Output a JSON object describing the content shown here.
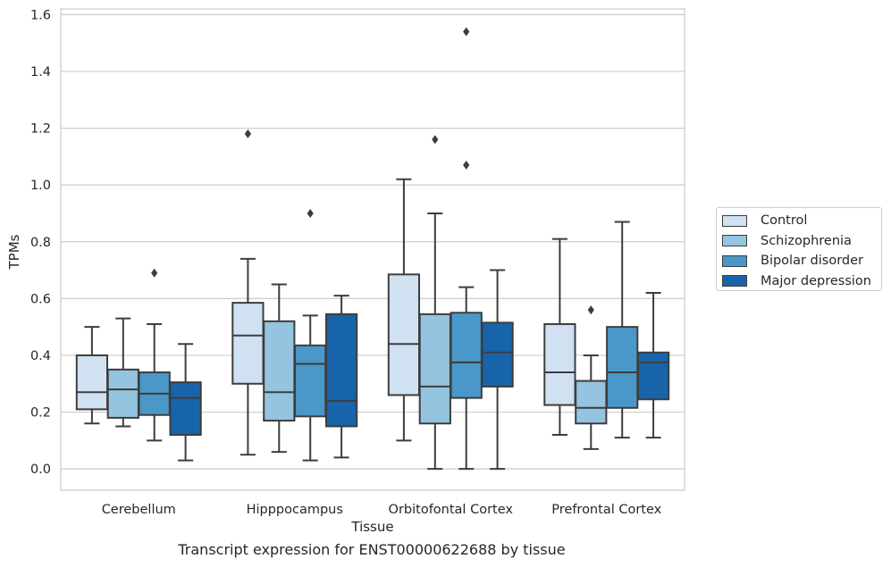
{
  "chart_data": {
    "type": "box",
    "caption": "Transcript expression for ENST00000622688 by tissue",
    "xlabel": "Tissue",
    "ylabel": "TPMs",
    "ylim": [
      -0.075,
      1.62
    ],
    "yticks": [
      "0.0",
      "0.2",
      "0.4",
      "0.6",
      "0.8",
      "1.0",
      "1.2",
      "1.4",
      "1.6"
    ],
    "grid": true,
    "legend_position": "right",
    "categories": [
      "Cerebellum",
      "Hipppocampus",
      "Orbitofontal Cortex",
      "Prefrontal Cortex"
    ],
    "series": [
      {
        "name": "Control",
        "color": "#d0e1f2",
        "boxes": [
          {
            "whislo": 0.16,
            "q1": 0.21,
            "med": 0.27,
            "q3": 0.4,
            "whishi": 0.5,
            "fliers": []
          },
          {
            "whislo": 0.05,
            "q1": 0.3,
            "med": 0.47,
            "q3": 0.585,
            "whishi": 0.74,
            "fliers": [
              1.18
            ]
          },
          {
            "whislo": 0.1,
            "q1": 0.26,
            "med": 0.44,
            "q3": 0.685,
            "whishi": 1.02,
            "fliers": []
          },
          {
            "whislo": 0.12,
            "q1": 0.225,
            "med": 0.34,
            "q3": 0.51,
            "whishi": 0.81,
            "fliers": []
          }
        ]
      },
      {
        "name": "Schizophrenia",
        "color": "#94c4df",
        "boxes": [
          {
            "whislo": 0.15,
            "q1": 0.18,
            "med": 0.28,
            "q3": 0.35,
            "whishi": 0.53,
            "fliers": []
          },
          {
            "whislo": 0.06,
            "q1": 0.17,
            "med": 0.27,
            "q3": 0.52,
            "whishi": 0.65,
            "fliers": []
          },
          {
            "whislo": 0.0,
            "q1": 0.16,
            "med": 0.29,
            "q3": 0.545,
            "whishi": 0.9,
            "fliers": [
              1.16
            ]
          },
          {
            "whislo": 0.07,
            "q1": 0.16,
            "med": 0.215,
            "q3": 0.31,
            "whishi": 0.4,
            "fliers": [
              0.56
            ]
          }
        ]
      },
      {
        "name": "Bipolar disorder",
        "color": "#4a98c9",
        "boxes": [
          {
            "whislo": 0.1,
            "q1": 0.19,
            "med": 0.265,
            "q3": 0.34,
            "whishi": 0.51,
            "fliers": [
              0.69
            ]
          },
          {
            "whislo": 0.03,
            "q1": 0.185,
            "med": 0.37,
            "q3": 0.435,
            "whishi": 0.54,
            "fliers": [
              0.9
            ]
          },
          {
            "whislo": 0.0,
            "q1": 0.25,
            "med": 0.375,
            "q3": 0.55,
            "whishi": 0.64,
            "fliers": [
              1.07,
              1.54
            ]
          },
          {
            "whislo": 0.11,
            "q1": 0.215,
            "med": 0.34,
            "q3": 0.5,
            "whishi": 0.87,
            "fliers": []
          }
        ]
      },
      {
        "name": "Major depression",
        "color": "#1764ab",
        "boxes": [
          {
            "whislo": 0.03,
            "q1": 0.12,
            "med": 0.25,
            "q3": 0.305,
            "whishi": 0.44,
            "fliers": []
          },
          {
            "whislo": 0.04,
            "q1": 0.15,
            "med": 0.24,
            "q3": 0.545,
            "whishi": 0.61,
            "fliers": []
          },
          {
            "whislo": 0.0,
            "q1": 0.29,
            "med": 0.41,
            "q3": 0.515,
            "whishi": 0.7,
            "fliers": []
          },
          {
            "whislo": 0.11,
            "q1": 0.245,
            "med": 0.375,
            "q3": 0.41,
            "whishi": 0.62,
            "fliers": []
          }
        ]
      }
    ]
  }
}
